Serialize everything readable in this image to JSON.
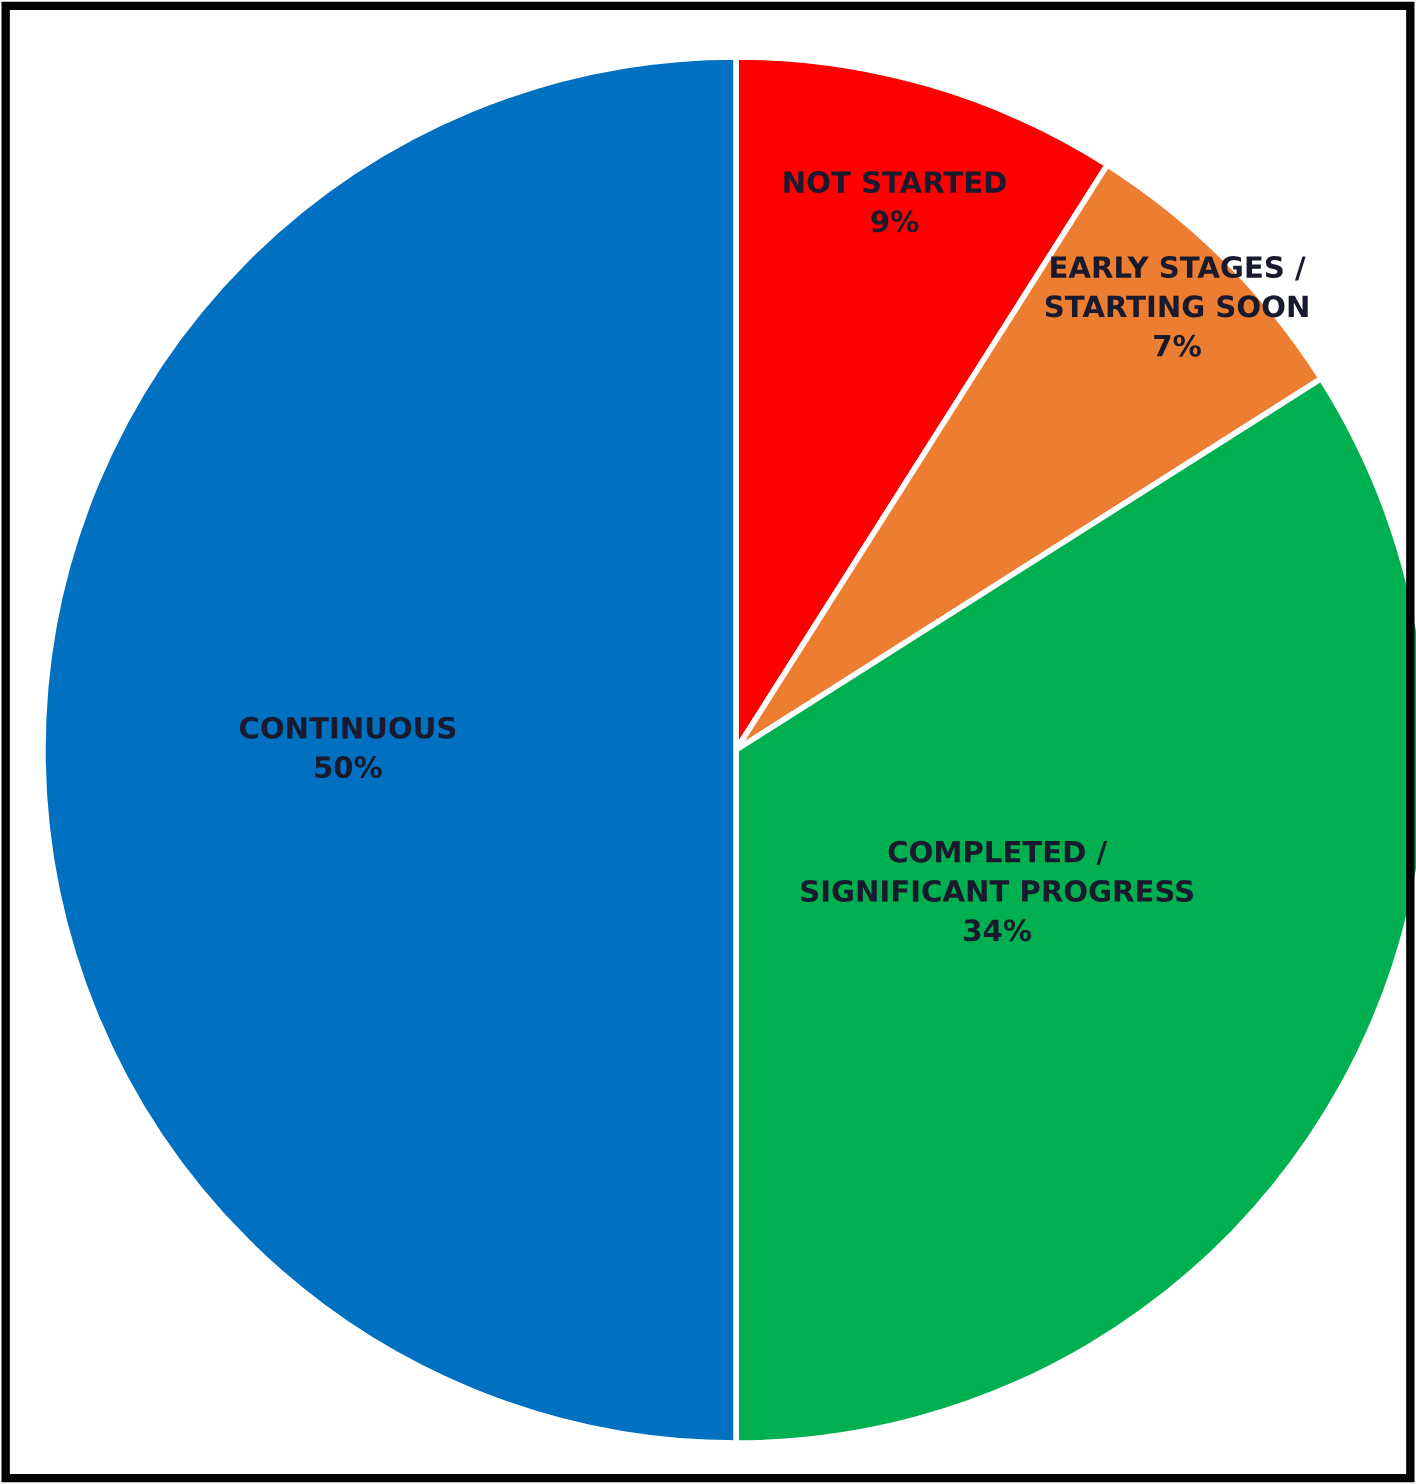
{
  "chart_data": {
    "type": "pie",
    "categories": [
      "NOT STARTED",
      "EARLY STAGES /\nSTARTING SOON",
      "COMPLETED /\nSIGNIFICANT PROGRESS",
      "CONTINUOUS"
    ],
    "values": [
      9,
      7,
      34,
      50
    ],
    "colors": [
      "#ff0000",
      "#ed7d31",
      "#00b050",
      "#0070c0"
    ],
    "value_labels": [
      "9%",
      "7%",
      "34%",
      "50%"
    ],
    "legend": false
  }
}
